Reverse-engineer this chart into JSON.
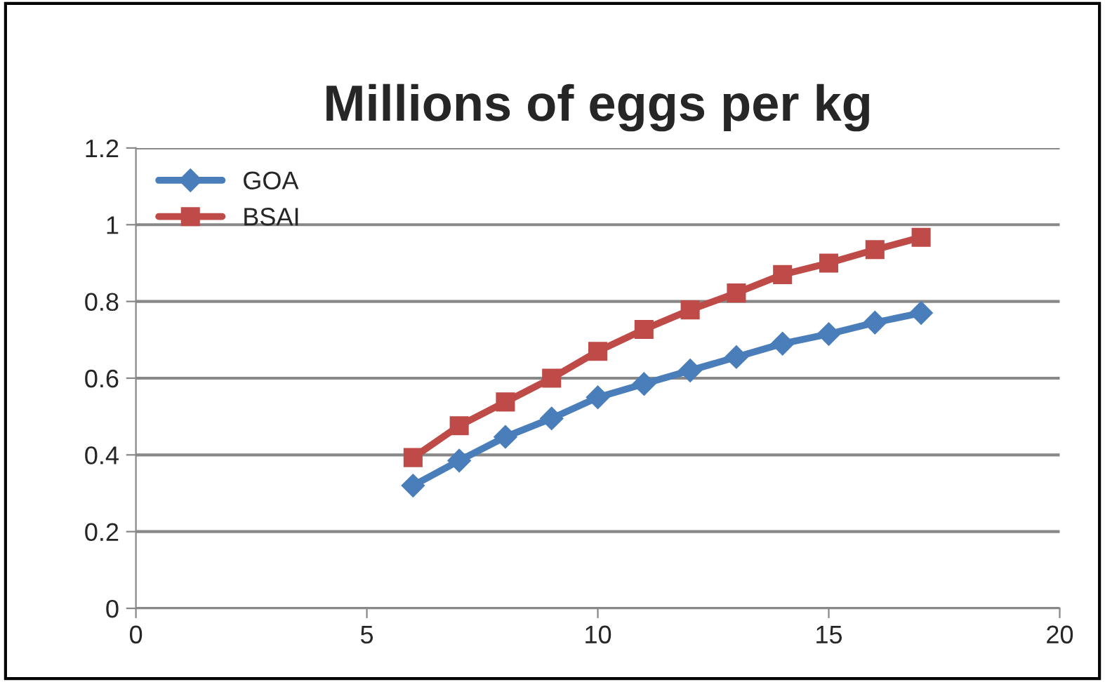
{
  "chart_data": {
    "type": "line",
    "title": "Millions of eggs per kg",
    "x": [
      6,
      7,
      8,
      9,
      10,
      11,
      12,
      13,
      14,
      15,
      16,
      17
    ],
    "series": [
      {
        "name": "GOA",
        "color": "#4a7ebb",
        "marker": "diamond",
        "values": [
          0.32,
          0.385,
          0.447,
          0.495,
          0.55,
          0.585,
          0.62,
          0.655,
          0.69,
          0.715,
          0.745,
          0.77
        ]
      },
      {
        "name": "BSAI",
        "color": "#be4b48",
        "marker": "square",
        "values": [
          0.393,
          0.476,
          0.538,
          0.6,
          0.67,
          0.727,
          0.778,
          0.822,
          0.87,
          0.9,
          0.935,
          0.967
        ]
      }
    ],
    "xlim": [
      0,
      20
    ],
    "xticks": [
      0,
      5,
      10,
      15,
      20
    ],
    "ylim": [
      0,
      1.2
    ],
    "yticks": [
      0,
      0.2,
      0.4,
      0.6,
      0.8,
      1,
      1.2
    ],
    "grid": "y",
    "legend": "top left",
    "line_style": "solid"
  }
}
